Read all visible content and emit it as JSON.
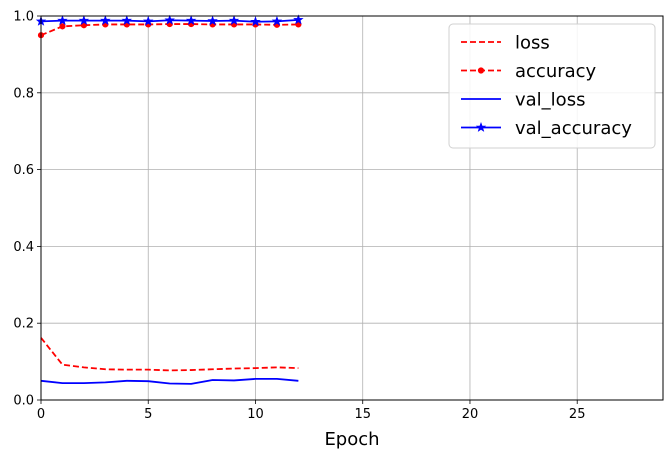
{
  "chart_data": {
    "type": "line",
    "xlabel": "Epoch",
    "ylabel": "",
    "xlim": [
      0,
      29
    ],
    "ylim": [
      0,
      1
    ],
    "xticks": [
      0,
      5,
      10,
      15,
      20,
      25
    ],
    "yticks": [
      0.0,
      0.2,
      0.4,
      0.6,
      0.8,
      1.0
    ],
    "xtick_labels": [
      "0",
      "5",
      "10",
      "15",
      "20",
      "25"
    ],
    "ytick_labels": [
      "0.0",
      "0.2",
      "0.4",
      "0.6",
      "0.8",
      "1.0"
    ],
    "grid": true,
    "legend_position": "top-right",
    "x": [
      0,
      1,
      2,
      3,
      4,
      5,
      6,
      7,
      8,
      9,
      10,
      11,
      12
    ],
    "series": [
      {
        "name": "loss",
        "color": "#ff0000",
        "style": "dashed",
        "marker": "none",
        "values": [
          0.162,
          0.092,
          0.085,
          0.08,
          0.079,
          0.079,
          0.077,
          0.078,
          0.08,
          0.082,
          0.083,
          0.085,
          0.083
        ]
      },
      {
        "name": "accuracy",
        "color": "#ff0000",
        "style": "dashed",
        "marker": "circle",
        "values": [
          0.95,
          0.973,
          0.976,
          0.978,
          0.978,
          0.978,
          0.979,
          0.979,
          0.978,
          0.978,
          0.978,
          0.977,
          0.978
        ]
      },
      {
        "name": "val_loss",
        "color": "#0000ff",
        "style": "solid",
        "marker": "none",
        "values": [
          0.05,
          0.044,
          0.044,
          0.046,
          0.05,
          0.049,
          0.043,
          0.042,
          0.052,
          0.051,
          0.055,
          0.055,
          0.05
        ]
      },
      {
        "name": "val_accuracy",
        "color": "#0000ff",
        "style": "solid",
        "marker": "star",
        "values": [
          0.986,
          0.988,
          0.988,
          0.988,
          0.988,
          0.986,
          0.989,
          0.988,
          0.987,
          0.988,
          0.985,
          0.986,
          0.99
        ]
      }
    ]
  }
}
